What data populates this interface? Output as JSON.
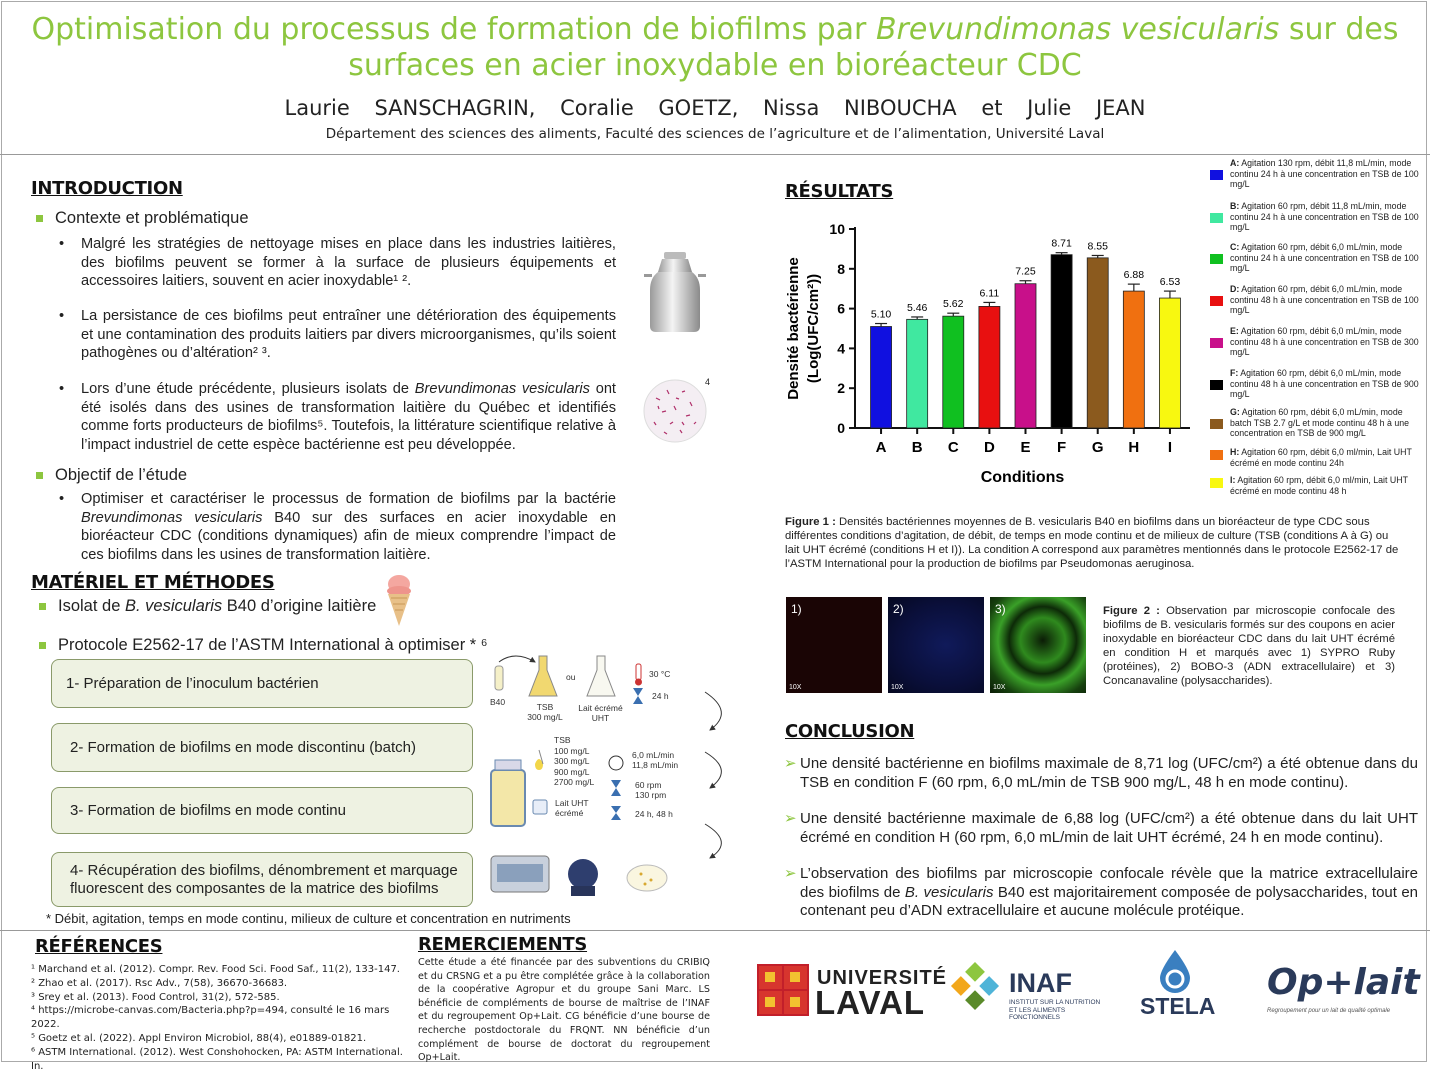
{
  "header": {
    "title_part1": "Optimisation du processus de formation de biofilms par ",
    "title_species": "Brevundimonas vesicularis",
    "title_part2": " sur des surfaces en acier inoxydable en bioréacteur CDC",
    "authors": "Laurie SANSCHAGRIN, Coralie GOETZ, Nissa NIBOUCHA et Julie JEAN",
    "department": "Département des sciences des aliments, Faculté des sciences de l’agriculture et de l’alimentation, Université Laval"
  },
  "introduction": {
    "heading": "INTRODUCTION",
    "context_label": "Contexte et problématique",
    "p1": "Malgré les stratégies de nettoyage mises en place dans les industries laitières, des biofilms peuvent se former à la surface de plusieurs équipements et accessoires laitiers, souvent en acier inoxydable¹ ².",
    "p2": "La persistance de ces biofilms peut entraîner une détérioration des équipements et une contamination des produits laitiers par divers microorganismes, qu’ils soient pathogènes ou d’altération² ³.",
    "p3a": "Lors d’une étude précédente, plusieurs isolats de ",
    "p3_species": "Brevundimonas vesicularis",
    "p3b": " ont été isolés dans des usines de transformation laitière du Québec et identifiés comme forts producteurs de biofilms⁵. Toutefois, la littérature scientifique relative à l’impact industriel de cette espèce bactérienne est peu développée.",
    "petri_ref": "4",
    "objective_label": "Objectif de l’étude",
    "p4a": "Optimiser et caractériser le processus de formation de biofilms par la bactérie ",
    "p4_species": "Brevundimonas vesicularis",
    "p4b": " B40 sur des surfaces en acier inoxydable en bioréacteur CDC (conditions dynamiques) afin de mieux comprendre l’impact de ces biofilms dans les usines de transformation laitière."
  },
  "methods": {
    "heading": "MATÉRIEL ET MÉTHODES",
    "isolate_a": "Isolat de ",
    "isolate_species": "B. vesicularis",
    "isolate_b": " B40 d’origine laitière",
    "protocol": "Protocole E2562-17 de l’ASTM International à optimiser * ⁶",
    "steps": [
      "1- Préparation de l’inoculum bactérien",
      "2- Formation de biofilms en mode discontinu (batch)",
      "3- Formation de biofilms en mode continu",
      "4- Récupération des biofilms, dénombrement et marquage fluorescent des composantes de la matrice des biofilms"
    ],
    "footnote": "* Débit, agitation, temps en mode continu, milieux de culture et concentration en nutriments",
    "diagram": {
      "b40": "B40",
      "ou": "ou",
      "tsb": "TSB\n300 mg/L",
      "lait": "Lait écrémé\nUHT",
      "temp": "30 °C",
      "time1": "24 h",
      "tsb_conc": "TSB\n100 mg/L\n300 mg/L\n900 mg/L\n2700 mg/L",
      "flow": "6,0 mL/min\n11,8 mL/min",
      "lait_uht": "Lait UHT\nécrémé",
      "rpm": "60 rpm\n130 rpm",
      "time2": "24 h, 48 h"
    }
  },
  "results": {
    "heading": "RÉSULTATS",
    "figure1_label": "Figure 1 :",
    "figure1_caption": " Densités bactériennes moyennes de B. vesicularis B40 en biofilms dans un bioréacteur de type CDC sous différentes conditions d’agitation, de débit, de temps en mode continu et de milieux de culture (TSB (conditions A à G) ou lait UHT écrémé (conditions H et I)). La condition A correspond aux paramètres mentionnés dans le protocole E2562-17 de l’ASTM International pour la production de biofilms par Pseudomonas aeruginosa.",
    "figure2_label": "Figure 2 :",
    "figure2_caption": " Observation par microscopie confocale des biofilms de B. vesicularis formés sur des coupons en acier inoxydable en bioréacteur CDC dans du lait UHT écrémé en condition H et marqués avec 1) SYPRO Ruby (protéines), 2) BOBO-3 (ADN extracellulaire) et 3) Concanavaline (polysaccharides).",
    "micro": [
      {
        "label": "1)",
        "mag": "10X",
        "color": "#1a0505"
      },
      {
        "label": "2)",
        "mag": "10X",
        "color": "#0a0f3a"
      },
      {
        "label": "3)",
        "mag": "10X",
        "color": "#1d5a12"
      }
    ]
  },
  "chart_data": {
    "type": "bar",
    "categories": [
      "A",
      "B",
      "C",
      "D",
      "E",
      "F",
      "G",
      "H",
      "I"
    ],
    "values": [
      5.1,
      5.46,
      5.62,
      6.11,
      7.25,
      8.71,
      8.55,
      6.88,
      6.53
    ],
    "value_labels": [
      "5.10",
      "5.46",
      "5.62",
      "6.11",
      "7.25",
      "8.71",
      "8.55",
      "6.88",
      "6.53"
    ],
    "errors": [
      0.15,
      0.12,
      0.15,
      0.2,
      0.15,
      0.1,
      0.12,
      0.35,
      0.35
    ],
    "colors": [
      "#1010e0",
      "#40e8a0",
      "#10c020",
      "#e81010",
      "#c8108a",
      "#000000",
      "#8b5a1e",
      "#f07010",
      "#f8f810"
    ],
    "xlabel": "Conditions",
    "ylabel_line1": "Densité bactérienne",
    "ylabel_line2": "(Log(UFC/cm²))",
    "ylim": [
      0,
      10
    ],
    "yticks": [
      "0",
      "2",
      "4",
      "6",
      "8",
      "10"
    ],
    "legend": [
      {
        "key": "A:",
        "text": "Agitation 130 rpm, débit 11,8 mL/min, mode continu 24 h à une concentration en TSB de 100 mg/L"
      },
      {
        "key": "B:",
        "text": "Agitation 60 rpm, débit 11,8 mL/min, mode continu 24 h à une concentration en TSB de 100 mg/L"
      },
      {
        "key": "C:",
        "text": "Agitation 60 rpm, débit 6,0 mL/min, mode continu 24 h à une concentration en TSB de 100 mg/L"
      },
      {
        "key": "D:",
        "text": "Agitation 60 rpm, débit 6,0 mL/min, mode continu 48 h à une concentration en TSB de 100 mg/L"
      },
      {
        "key": "E:",
        "text": "Agitation 60 rpm, débit 6,0 mL/min, mode continu 48 h à une concentration en TSB de 300 mg/L"
      },
      {
        "key": "F:",
        "text": "Agitation 60 rpm, débit 6,0 mL/min, mode continu 48 h à une concentration en TSB de 900 mg/L"
      },
      {
        "key": "G:",
        "text": "Agitation 60 rpm, débit 6,0 mL/min, mode batch TSB 2.7 g/L et mode continu 48 h à une concentration en TSB de 900 mg/L"
      },
      {
        "key": "H:",
        "text": "Agitation 60 rpm, débit 6,0 ml/min, Lait UHT écrémé en mode continu 24h"
      },
      {
        "key": "I:",
        "text": "Agitation 60 rpm, débit 6,0 ml/min, Lait UHT écrémé en mode continu 48 h"
      }
    ]
  },
  "conclusion": {
    "heading": "CONCLUSION",
    "c1": "Une densité bactérienne en biofilms maximale de 8,71 log (UFC/cm²) a été obtenue dans du TSB en condition F (60 rpm, 6,0 mL/min de TSB 900 mg/L, 48 h en mode continu).",
    "c2": "Une densité bactérienne maximale de 6,88 log (UFC/cm²) a été obtenue dans du lait UHT écrémé en condition H (60 rpm, 6,0 mL/min de lait UHT écrémé, 24 h en mode continu).",
    "c3a": "L’observation des biofilms par microscopie confocale révèle que la matrice extracellulaire des biofilms de ",
    "c3_species": "B. vesicularis",
    "c3b": " B40 est majoritairement composée de polysaccharides, tout en contenant peu d’ADN extracellulaire et aucune molécule protéique."
  },
  "references": {
    "heading": "RÉFÉRENCES",
    "items": [
      "¹ Marchand et al. (2012). Compr. Rev. Food Sci. Food Saf., 11(2), 133-147.",
      "² Zhao et al. (2017). Rsc Adv., 7(58), 36670-36683.",
      "³ Srey et al. (2013). Food Control, 31(2), 572-585.",
      "⁴ https://microbe-canvas.com/Bacteria.php?p=494, consulté le 16 mars 2022.",
      "⁵ Goetz et al. (2022). Appl Environ Microbiol, 88(4), e01889-01821.",
      "⁶ ASTM International. (2012). West Conshohocken, PA: ASTM International. In."
    ]
  },
  "acknowledgements": {
    "heading": "REMERCIEMENTS",
    "text": "Cette étude a été financée par des subventions du CRIBIQ et du CRSNG et a pu être complétée grâce à la collaboration de la coopérative Agropur et du groupe Sani Marc. LS bénéficie de compléments de bourse de maîtrise de l’INAF et du regroupement Op+Lait. CG bénéficie d’une bourse de recherche postdoctorale du FRQNT. NN bénéficie d’un complément de bourse de doctorat du regroupement Op+Lait."
  },
  "logos": {
    "laval_1": "UNIVERSITÉ",
    "laval_2": "LAVAL",
    "inaf": "INAF",
    "inaf_sub": "INSTITUT SUR LA NUTRITION ET LES ALIMENTS FONCTIONNELS",
    "stela": "STELA",
    "oplait": "Op+lait",
    "oplait_sub": "Regroupement pour un lait de qualité optimale"
  }
}
